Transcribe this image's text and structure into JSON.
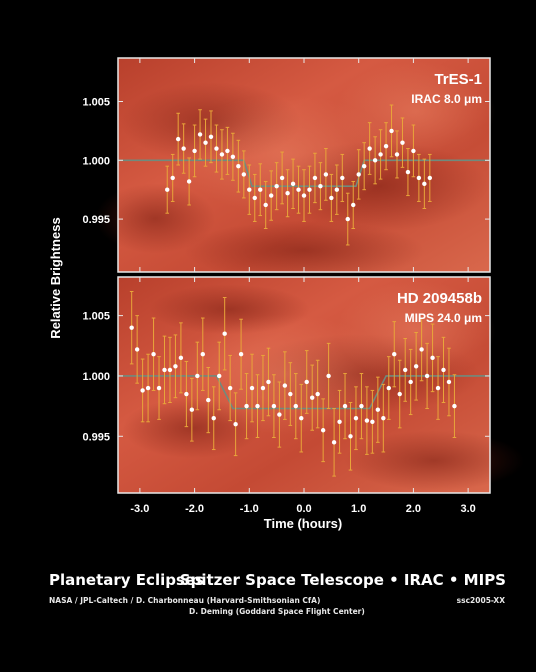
{
  "colors": {
    "background": "#000000",
    "panel_dark": "#9e2a1c",
    "panel_light": "#d55a42",
    "model_line": "#6f8b7e",
    "point": "#ffffff",
    "error_bar": "#e8a53a",
    "frame": "#e8e8e8"
  },
  "footer": {
    "title_left": "Planetary Eclipses",
    "title_right": "Spitzer Space Telescope • IRAC • MIPS",
    "credit_line1": "NASA / JPL-Caltech / D. Charbonneau (Harvard-Smithsonian CfA)",
    "credit_line2": "D. Deming (Goddard Space Flight Center)",
    "code": "ssc2005-XX"
  },
  "chart_data": [
    {
      "type": "scatter",
      "title": "TrES-1",
      "subtitle": "IRAC  8.0 μm",
      "ylabel": "Relative Brightness",
      "xlabel": "",
      "xlim": [
        -3.4,
        3.4
      ],
      "ylim": [
        0.9905,
        1.0087
      ],
      "yticks": [
        "1.005",
        "1.000",
        "0.995"
      ],
      "ytick_values": [
        1.005,
        1.0,
        0.995
      ],
      "model": {
        "x": [
          -3.4,
          -1.1,
          -0.95,
          0.95,
          1.1,
          3.4
        ],
        "y": [
          1.0,
          1.0,
          0.9978,
          0.9978,
          1.0,
          1.0
        ]
      },
      "x": [
        -2.5,
        -2.4,
        -2.3,
        -2.2,
        -2.1,
        -2.0,
        -1.9,
        -1.8,
        -1.7,
        -1.6,
        -1.5,
        -1.4,
        -1.3,
        -1.2,
        -1.1,
        -1.0,
        -0.9,
        -0.8,
        -0.7,
        -0.6,
        -0.5,
        -0.4,
        -0.3,
        -0.2,
        -0.1,
        0.0,
        0.1,
        0.2,
        0.3,
        0.4,
        0.5,
        0.6,
        0.7,
        0.8,
        0.9,
        1.0,
        1.1,
        1.2,
        1.3,
        1.4,
        1.5,
        1.6,
        1.7,
        1.8,
        1.9,
        2.0,
        2.1,
        2.2,
        2.3
      ],
      "y": [
        0.9975,
        0.9985,
        1.0018,
        1.001,
        0.9982,
        1.0008,
        1.0022,
        1.0015,
        1.002,
        1.001,
        1.0005,
        1.0008,
        1.0003,
        0.9995,
        0.9988,
        0.9975,
        0.9968,
        0.9975,
        0.9962,
        0.997,
        0.9978,
        0.9985,
        0.9972,
        0.998,
        0.9975,
        0.997,
        0.9975,
        0.9985,
        0.9978,
        0.9988,
        0.9968,
        0.9975,
        0.9985,
        0.995,
        0.9962,
        0.9988,
        0.9995,
        1.001,
        1.0,
        1.0005,
        1.0012,
        1.0025,
        1.0005,
        1.0015,
        0.999,
        1.0008,
        0.9985,
        0.998,
        0.9985
      ],
      "err": [
        0.002,
        0.002,
        0.0022,
        0.0021,
        0.002,
        0.0022,
        0.0021,
        0.002,
        0.0022,
        0.002,
        0.0021,
        0.002,
        0.002,
        0.0022,
        0.002,
        0.0021,
        0.002,
        0.0022,
        0.002,
        0.0021,
        0.002,
        0.0022,
        0.002,
        0.0021,
        0.002,
        0.0022,
        0.002,
        0.0021,
        0.002,
        0.0022,
        0.002,
        0.0021,
        0.002,
        0.0022,
        0.002,
        0.0021,
        0.002,
        0.0022,
        0.002,
        0.0021,
        0.002,
        0.0022,
        0.002,
        0.0021,
        0.002,
        0.0022,
        0.002,
        0.0021,
        0.002
      ]
    },
    {
      "type": "scatter",
      "title": "HD 209458b",
      "subtitle": "MIPS  24.0 μm",
      "ylabel": "Relative Brightness",
      "xlabel": "Time (hours)",
      "xlim": [
        -3.4,
        3.4
      ],
      "ylim": [
        0.9903,
        1.0082
      ],
      "yticks": [
        "1.005",
        "1.000",
        "0.995"
      ],
      "ytick_values": [
        1.005,
        1.0,
        0.995
      ],
      "xticks": [
        "-3.0",
        "-2.0",
        "-1.0",
        "0.0",
        "1.0",
        "2.0",
        "3.0"
      ],
      "xtick_values": [
        -3.0,
        -2.0,
        -1.0,
        0.0,
        1.0,
        2.0,
        3.0
      ],
      "model": {
        "x": [
          -3.4,
          -1.6,
          -1.3,
          1.2,
          1.5,
          3.4
        ],
        "y": [
          1.0,
          1.0,
          0.9973,
          0.9973,
          1.0,
          1.0
        ]
      },
      "x": [
        -3.15,
        -3.05,
        -2.95,
        -2.85,
        -2.75,
        -2.65,
        -2.55,
        -2.45,
        -2.35,
        -2.25,
        -2.15,
        -2.05,
        -1.95,
        -1.85,
        -1.75,
        -1.65,
        -1.55,
        -1.45,
        -1.35,
        -1.25,
        -1.15,
        -1.05,
        -0.95,
        -0.85,
        -0.75,
        -0.65,
        -0.55,
        -0.45,
        -0.35,
        -0.25,
        -0.15,
        -0.05,
        0.05,
        0.15,
        0.25,
        0.35,
        0.45,
        0.55,
        0.65,
        0.75,
        0.85,
        0.95,
        1.05,
        1.15,
        1.25,
        1.35,
        1.45,
        1.55,
        1.65,
        1.75,
        1.85,
        1.95,
        2.05,
        2.15,
        2.25,
        2.35,
        2.45,
        2.55,
        2.65,
        2.75
      ],
      "y": [
        1.004,
        1.0022,
        0.9988,
        0.999,
        1.0018,
        0.999,
        1.0005,
        1.0005,
        1.0008,
        1.0015,
        0.9985,
        0.9972,
        1.0,
        1.0018,
        0.998,
        0.9965,
        1.0,
        1.0035,
        0.999,
        0.996,
        1.0018,
        0.9975,
        0.999,
        0.9975,
        0.999,
        0.9995,
        0.9975,
        0.9968,
        0.9992,
        0.9985,
        0.9975,
        0.9965,
        0.9995,
        0.9982,
        0.9985,
        0.9955,
        1.0,
        0.9945,
        0.9962,
        0.9975,
        0.995,
        0.9965,
        0.9975,
        0.9963,
        0.9962,
        0.9972,
        0.9965,
        0.999,
        1.0018,
        0.9985,
        1.0005,
        0.9995,
        1.0008,
        1.0022,
        1.0,
        1.0015,
        0.999,
        1.0005,
        0.9995,
        0.9975
      ],
      "err": [
        0.003,
        0.0028,
        0.0026,
        0.0028,
        0.003,
        0.0026,
        0.0028,
        0.0027,
        0.0026,
        0.0029,
        0.0027,
        0.0026,
        0.0028,
        0.003,
        0.0027,
        0.0026,
        0.0028,
        0.003,
        0.0027,
        0.0026,
        0.0029,
        0.0027,
        0.0028,
        0.0026,
        0.0027,
        0.0028,
        0.0026,
        0.0027,
        0.0028,
        0.0026,
        0.0027,
        0.0028,
        0.0026,
        0.0027,
        0.0028,
        0.0026,
        0.0027,
        0.0028,
        0.0026,
        0.0027,
        0.0028,
        0.0026,
        0.0027,
        0.0028,
        0.0026,
        0.0027,
        0.0028,
        0.0026,
        0.0027,
        0.0028,
        0.0026,
        0.0027,
        0.0028,
        0.0026,
        0.0027,
        0.0028,
        0.0026,
        0.0027,
        0.0028,
        0.0026
      ]
    }
  ]
}
